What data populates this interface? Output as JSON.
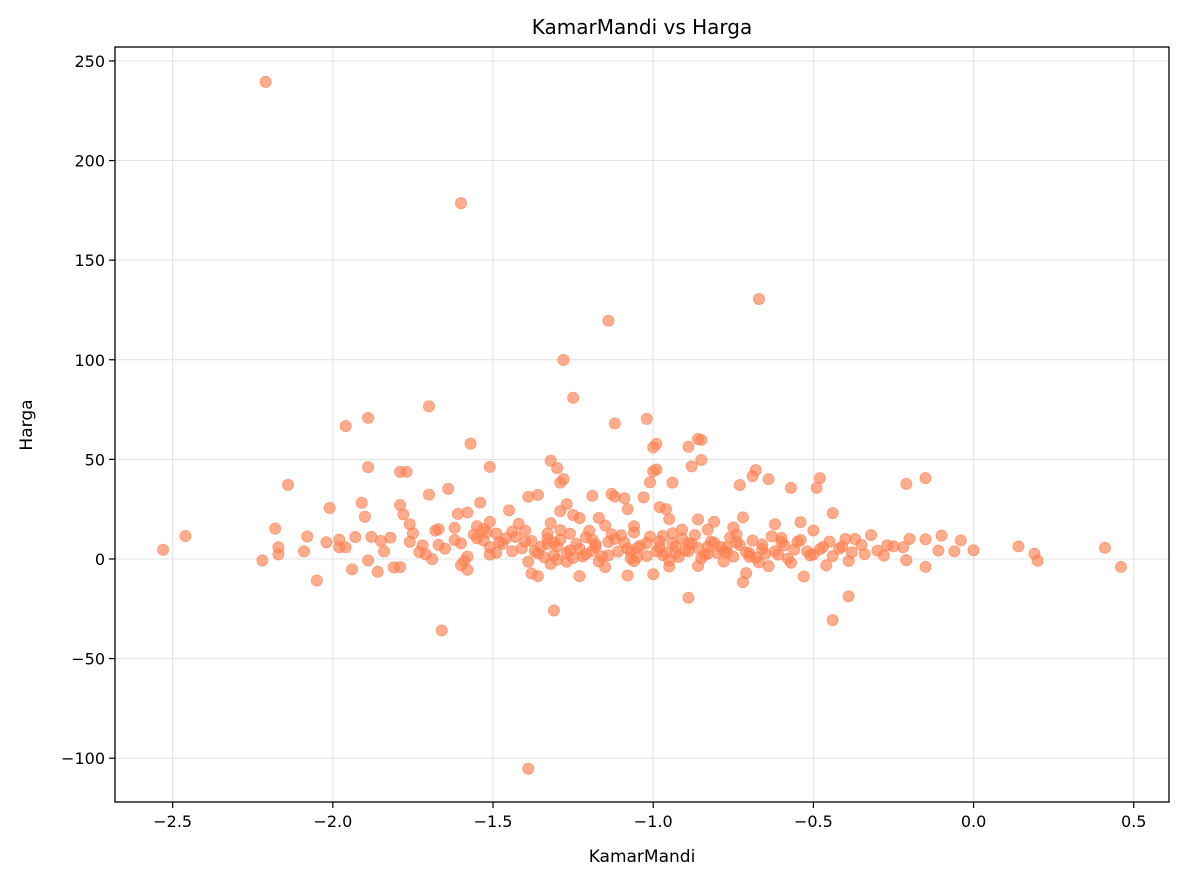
{
  "chart_data": {
    "type": "scatter",
    "title": "KamarMandi vs Harga",
    "xlabel": "KamarMandi",
    "ylabel": "Harga",
    "xlim": [
      -2.68,
      0.61
    ],
    "ylim": [
      -122,
      257
    ],
    "xticks": [
      -2.5,
      -2.0,
      -1.5,
      -1.0,
      -0.5,
      0.0,
      0.5
    ],
    "xtick_labels": [
      "−2.5",
      "−2.0",
      "−1.5",
      "−1.0",
      "−0.5",
      "0.0",
      "0.5"
    ],
    "yticks": [
      -100,
      -50,
      0,
      50,
      100,
      150,
      200,
      250
    ],
    "ytick_labels": [
      "−100",
      "−50",
      "0",
      "50",
      "100",
      "150",
      "200",
      "250"
    ],
    "grid": true,
    "point_color": "#ff7f50",
    "point_opacity": 0.65,
    "series": [
      {
        "name": "data",
        "points": [
          [
            -2.21,
            239.5
          ],
          [
            -1.6,
            178.6
          ],
          [
            -0.67,
            130.5
          ],
          [
            -1.14,
            119.6
          ],
          [
            -1.28,
            99.9
          ],
          [
            -1.25,
            80.9
          ],
          [
            -1.7,
            76.6
          ],
          [
            -1.89,
            70.8
          ],
          [
            -1.02,
            70.3
          ],
          [
            -1.12,
            68.0
          ],
          [
            -1.96,
            66.7
          ],
          [
            -0.86,
            60.2
          ],
          [
            -0.85,
            59.8
          ],
          [
            -1.57,
            57.9
          ],
          [
            -0.99,
            57.8
          ],
          [
            -1.0,
            56.0
          ],
          [
            -0.89,
            56.3
          ],
          [
            -0.85,
            49.7
          ],
          [
            -1.32,
            49.3
          ],
          [
            -1.89,
            46.1
          ],
          [
            -1.51,
            46.2
          ],
          [
            -1.3,
            45.6
          ],
          [
            -0.88,
            46.5
          ],
          [
            -0.99,
            44.9
          ],
          [
            -1.0,
            44.0
          ],
          [
            -0.68,
            44.6
          ],
          [
            -1.79,
            43.7
          ],
          [
            -1.77,
            43.8
          ],
          [
            -0.69,
            41.6
          ],
          [
            -0.48,
            40.6
          ],
          [
            -0.15,
            40.6
          ],
          [
            -1.28,
            40.1
          ],
          [
            -1.01,
            38.5
          ],
          [
            -0.94,
            38.3
          ],
          [
            -1.29,
            38.3
          ],
          [
            -0.64,
            40.1
          ],
          [
            -0.73,
            37.1
          ],
          [
            -0.21,
            37.7
          ],
          [
            -2.14,
            37.2
          ],
          [
            -1.64,
            35.2
          ],
          [
            -0.57,
            35.7
          ],
          [
            -0.49,
            35.7
          ],
          [
            -1.13,
            32.7
          ],
          [
            -1.7,
            32.3
          ],
          [
            -1.36,
            32.2
          ],
          [
            -1.39,
            31.2
          ],
          [
            -1.12,
            31.3
          ],
          [
            -1.03,
            30.9
          ],
          [
            -1.19,
            31.7
          ],
          [
            -1.09,
            30.5
          ],
          [
            -1.54,
            28.3
          ],
          [
            -1.91,
            28.2
          ],
          [
            -1.27,
            27.5
          ],
          [
            -1.79,
            27.1
          ],
          [
            -0.98,
            26.0
          ],
          [
            -2.01,
            25.6
          ],
          [
            -1.08,
            25.0
          ],
          [
            -1.45,
            24.4
          ],
          [
            -0.96,
            25.0
          ],
          [
            -1.29,
            24.0
          ],
          [
            -1.61,
            22.6
          ],
          [
            -0.44,
            23.0
          ],
          [
            -1.58,
            23.3
          ],
          [
            -1.78,
            22.4
          ],
          [
            -1.25,
            22.0
          ],
          [
            -1.23,
            20.5
          ],
          [
            -1.9,
            21.2
          ],
          [
            -0.72,
            20.9
          ],
          [
            -0.95,
            20.0
          ],
          [
            -1.17,
            20.6
          ],
          [
            -0.81,
            18.7
          ],
          [
            -0.86,
            19.8
          ],
          [
            -1.51,
            18.6
          ],
          [
            -0.54,
            18.5
          ],
          [
            -1.32,
            18.0
          ],
          [
            -1.42,
            17.6
          ],
          [
            -1.76,
            17.4
          ],
          [
            -0.62,
            17.4
          ],
          [
            -1.15,
            16.8
          ],
          [
            -1.55,
            16.5
          ],
          [
            -1.06,
            16.4
          ],
          [
            -0.75,
            15.8
          ],
          [
            -1.62,
            15.6
          ],
          [
            -2.18,
            15.2
          ],
          [
            -1.67,
            15.0
          ],
          [
            -1.53,
            15.0
          ],
          [
            -0.91,
            14.7
          ],
          [
            -0.83,
            14.7
          ],
          [
            -1.29,
            14.5
          ],
          [
            -1.68,
            14.2
          ],
          [
            -0.5,
            14.3
          ],
          [
            -1.2,
            14.1
          ],
          [
            -1.44,
            13.8
          ],
          [
            -1.06,
            13.3
          ],
          [
            -1.33,
            12.8
          ],
          [
            -1.49,
            12.8
          ],
          [
            -0.94,
            12.9
          ],
          [
            -1.75,
            12.9
          ],
          [
            -0.74,
            12.3
          ],
          [
            -1.56,
            12.3
          ],
          [
            -0.32,
            12.0
          ],
          [
            -0.1,
            11.7
          ],
          [
            -1.1,
            11.9
          ],
          [
            -2.46,
            11.5
          ],
          [
            -2.08,
            11.3
          ],
          [
            -1.93,
            11.0
          ],
          [
            -1.88,
            11.1
          ],
          [
            -1.82,
            10.7
          ],
          [
            -0.2,
            10.1
          ],
          [
            -0.15,
            9.9
          ],
          [
            -0.37,
            10.0
          ],
          [
            -0.4,
            10.0
          ],
          [
            -1.85,
            9.0
          ],
          [
            -1.98,
            9.7
          ],
          [
            -2.02,
            8.4
          ],
          [
            -0.04,
            9.3
          ],
          [
            -0.55,
            8.6
          ],
          [
            -1.48,
            8.5
          ],
          [
            -1.76,
            8.6
          ],
          [
            -0.98,
            8.9
          ],
          [
            -1.4,
            8.7
          ],
          [
            -1.31,
            8.2
          ],
          [
            -1.14,
            8.5
          ],
          [
            -0.81,
            8.2
          ],
          [
            -0.45,
            8.7
          ],
          [
            -0.6,
            8.5
          ],
          [
            -1.02,
            8.0
          ],
          [
            -1.24,
            7.6
          ],
          [
            -1.6,
            7.8
          ],
          [
            -1.72,
            6.8
          ],
          [
            -0.27,
            6.8
          ],
          [
            -1.33,
            7.5
          ],
          [
            -0.88,
            7.5
          ],
          [
            -0.66,
            7.3
          ],
          [
            -1.96,
            5.8
          ],
          [
            -1.98,
            5.9
          ],
          [
            0.14,
            6.3
          ],
          [
            0.41,
            5.6
          ],
          [
            -2.17,
            5.9
          ],
          [
            -1.51,
            5.9
          ],
          [
            -1.3,
            6.3
          ],
          [
            -1.18,
            6.0
          ],
          [
            -1.05,
            5.5
          ],
          [
            -0.93,
            6.3
          ],
          [
            -0.77,
            5.9
          ],
          [
            -0.47,
            6.0
          ],
          [
            -0.41,
            6.2
          ],
          [
            -0.22,
            5.9
          ],
          [
            -2.53,
            4.6
          ],
          [
            -2.09,
            3.8
          ],
          [
            -1.84,
            3.8
          ],
          [
            -1.44,
            3.9
          ],
          [
            -1.26,
            4.3
          ],
          [
            -1.19,
            4.0
          ],
          [
            -1.07,
            3.6
          ],
          [
            -0.99,
            3.9
          ],
          [
            -0.89,
            3.9
          ],
          [
            -0.78,
            4.0
          ],
          [
            -0.62,
            3.9
          ],
          [
            -0.52,
            3.9
          ],
          [
            0.0,
            4.4
          ],
          [
            -0.06,
            3.8
          ],
          [
            -0.11,
            4.2
          ],
          [
            -0.3,
            4.2
          ],
          [
            -2.17,
            2.3
          ],
          [
            -1.71,
            2.3
          ],
          [
            -1.51,
            2.2
          ],
          [
            -1.36,
            2.8
          ],
          [
            -1.21,
            2.5
          ],
          [
            -1.14,
            1.8
          ],
          [
            -0.97,
            2.0
          ],
          [
            -0.83,
            2.6
          ],
          [
            -0.7,
            2.9
          ],
          [
            -0.5,
            2.3
          ],
          [
            0.19,
            2.6
          ],
          [
            -0.34,
            2.4
          ],
          [
            -2.22,
            -0.7
          ],
          [
            -1.89,
            -0.7
          ],
          [
            -1.69,
            -0.1
          ],
          [
            -1.59,
            -1.0
          ],
          [
            -1.39,
            -1.4
          ],
          [
            -1.27,
            -1.4
          ],
          [
            -1.17,
            -1.2
          ],
          [
            -1.06,
            -1.1
          ],
          [
            -0.95,
            -0.8
          ],
          [
            -0.78,
            -1.3
          ],
          [
            -0.67,
            -1.7
          ],
          [
            -0.57,
            -1.9
          ],
          [
            -0.39,
            -1.0
          ],
          [
            -0.21,
            -0.6
          ],
          [
            0.2,
            -0.9
          ],
          [
            -1.6,
            -3.1
          ],
          [
            -1.32,
            -2.5
          ],
          [
            -1.15,
            -4.1
          ],
          [
            -0.95,
            -3.8
          ],
          [
            -0.86,
            -3.5
          ],
          [
            -0.64,
            -3.6
          ],
          [
            -0.46,
            -3.2
          ],
          [
            -0.15,
            -4.0
          ],
          [
            0.46,
            -4.0
          ],
          [
            -1.81,
            -4.2
          ],
          [
            -1.79,
            -4.1
          ],
          [
            -1.94,
            -5.2
          ],
          [
            -1.86,
            -6.4
          ],
          [
            -1.58,
            -5.4
          ],
          [
            -1.38,
            -7.3
          ],
          [
            -1.36,
            -8.6
          ],
          [
            -1.23,
            -8.6
          ],
          [
            -1.08,
            -8.3
          ],
          [
            -1.0,
            -7.7
          ],
          [
            -0.71,
            -7.1
          ],
          [
            -0.53,
            -8.8
          ],
          [
            -2.05,
            -10.8
          ],
          [
            -0.72,
            -11.6
          ],
          [
            -0.39,
            -18.8
          ],
          [
            -0.89,
            -19.5
          ],
          [
            -1.31,
            -25.9
          ],
          [
            -0.44,
            -30.7
          ],
          [
            -1.66,
            -35.9
          ],
          [
            -1.39,
            -105.3
          ],
          [
            -1.73,
            3.5
          ],
          [
            -1.65,
            5.2
          ],
          [
            -1.62,
            9.5
          ],
          [
            -1.55,
            10.4
          ],
          [
            -1.53,
            9.3
          ],
          [
            -1.52,
            13.4
          ],
          [
            -1.47,
            7.6
          ],
          [
            -1.43,
            11.1
          ],
          [
            -1.41,
            5.4
          ],
          [
            -1.38,
            9.0
          ],
          [
            -1.35,
            6.2
          ],
          [
            -1.34,
            0.8
          ],
          [
            -1.31,
            1.9
          ],
          [
            -1.29,
            9.7
          ],
          [
            -1.27,
            3.1
          ],
          [
            -1.25,
            0.5
          ],
          [
            -1.23,
            5.2
          ],
          [
            -1.21,
            11.0
          ],
          [
            -1.18,
            7.4
          ],
          [
            -1.16,
            1.3
          ],
          [
            -1.13,
            12.4
          ],
          [
            -1.11,
            3.7
          ],
          [
            -1.09,
            8.2
          ],
          [
            -1.07,
            0.2
          ],
          [
            -1.04,
            6.7
          ],
          [
            -1.02,
            1.5
          ],
          [
            -0.97,
            11.6
          ],
          [
            -0.96,
            3.1
          ],
          [
            -0.94,
            7.9
          ],
          [
            -0.92,
            1.0
          ],
          [
            -0.91,
            10.2
          ],
          [
            -0.9,
            4.4
          ],
          [
            -0.87,
            12.0
          ],
          [
            -0.86,
            5.5
          ],
          [
            -0.84,
            1.9
          ],
          [
            -0.82,
            8.8
          ],
          [
            -0.8,
            3.0
          ],
          [
            -0.79,
            6.1
          ],
          [
            -0.76,
            10.8
          ],
          [
            -0.75,
            1.2
          ],
          [
            -0.73,
            7.0
          ],
          [
            -0.71,
            3.4
          ],
          [
            -0.69,
            9.2
          ],
          [
            -0.68,
            0.6
          ],
          [
            -0.66,
            5.0
          ],
          [
            -0.63,
            11.4
          ],
          [
            -0.61,
            2.2
          ],
          [
            -0.59,
            6.8
          ],
          [
            -0.58,
            0.2
          ],
          [
            -0.56,
            4.6
          ],
          [
            -0.54,
            9.5
          ],
          [
            -0.51,
            1.8
          ],
          [
            -0.48,
            4.9
          ],
          [
            -0.44,
            1.4
          ],
          [
            -0.42,
            5.2
          ],
          [
            -0.38,
            3.3
          ],
          [
            -0.35,
            7.0
          ],
          [
            -0.28,
            1.7
          ],
          [
            -0.25,
            6.3
          ],
          [
            -1.67,
            7.1
          ],
          [
            -1.58,
            1.2
          ],
          [
            -1.49,
            3.1
          ],
          [
            -1.46,
            10.4
          ],
          [
            -1.4,
            14.2
          ],
          [
            -1.37,
            3.9
          ],
          [
            -1.33,
            10.0
          ],
          [
            -1.3,
            -0.4
          ],
          [
            -1.26,
            12.7
          ],
          [
            -1.22,
            1.3
          ],
          [
            -1.19,
            9.7
          ],
          [
            -1.12,
            10.1
          ],
          [
            -1.08,
            5.2
          ],
          [
            -1.05,
            0.9
          ],
          [
            -1.01,
            11.2
          ],
          [
            -0.98,
            5.9
          ],
          [
            -0.93,
            3.0
          ],
          [
            -0.89,
            8.0
          ],
          [
            -0.85,
            0.3
          ],
          [
            -0.83,
            6.1
          ],
          [
            -0.77,
            3.2
          ],
          [
            -0.74,
            8.4
          ],
          [
            -0.7,
            1.1
          ],
          [
            -0.65,
            2.6
          ],
          [
            -0.6,
            10.6
          ]
        ]
      }
    ]
  }
}
